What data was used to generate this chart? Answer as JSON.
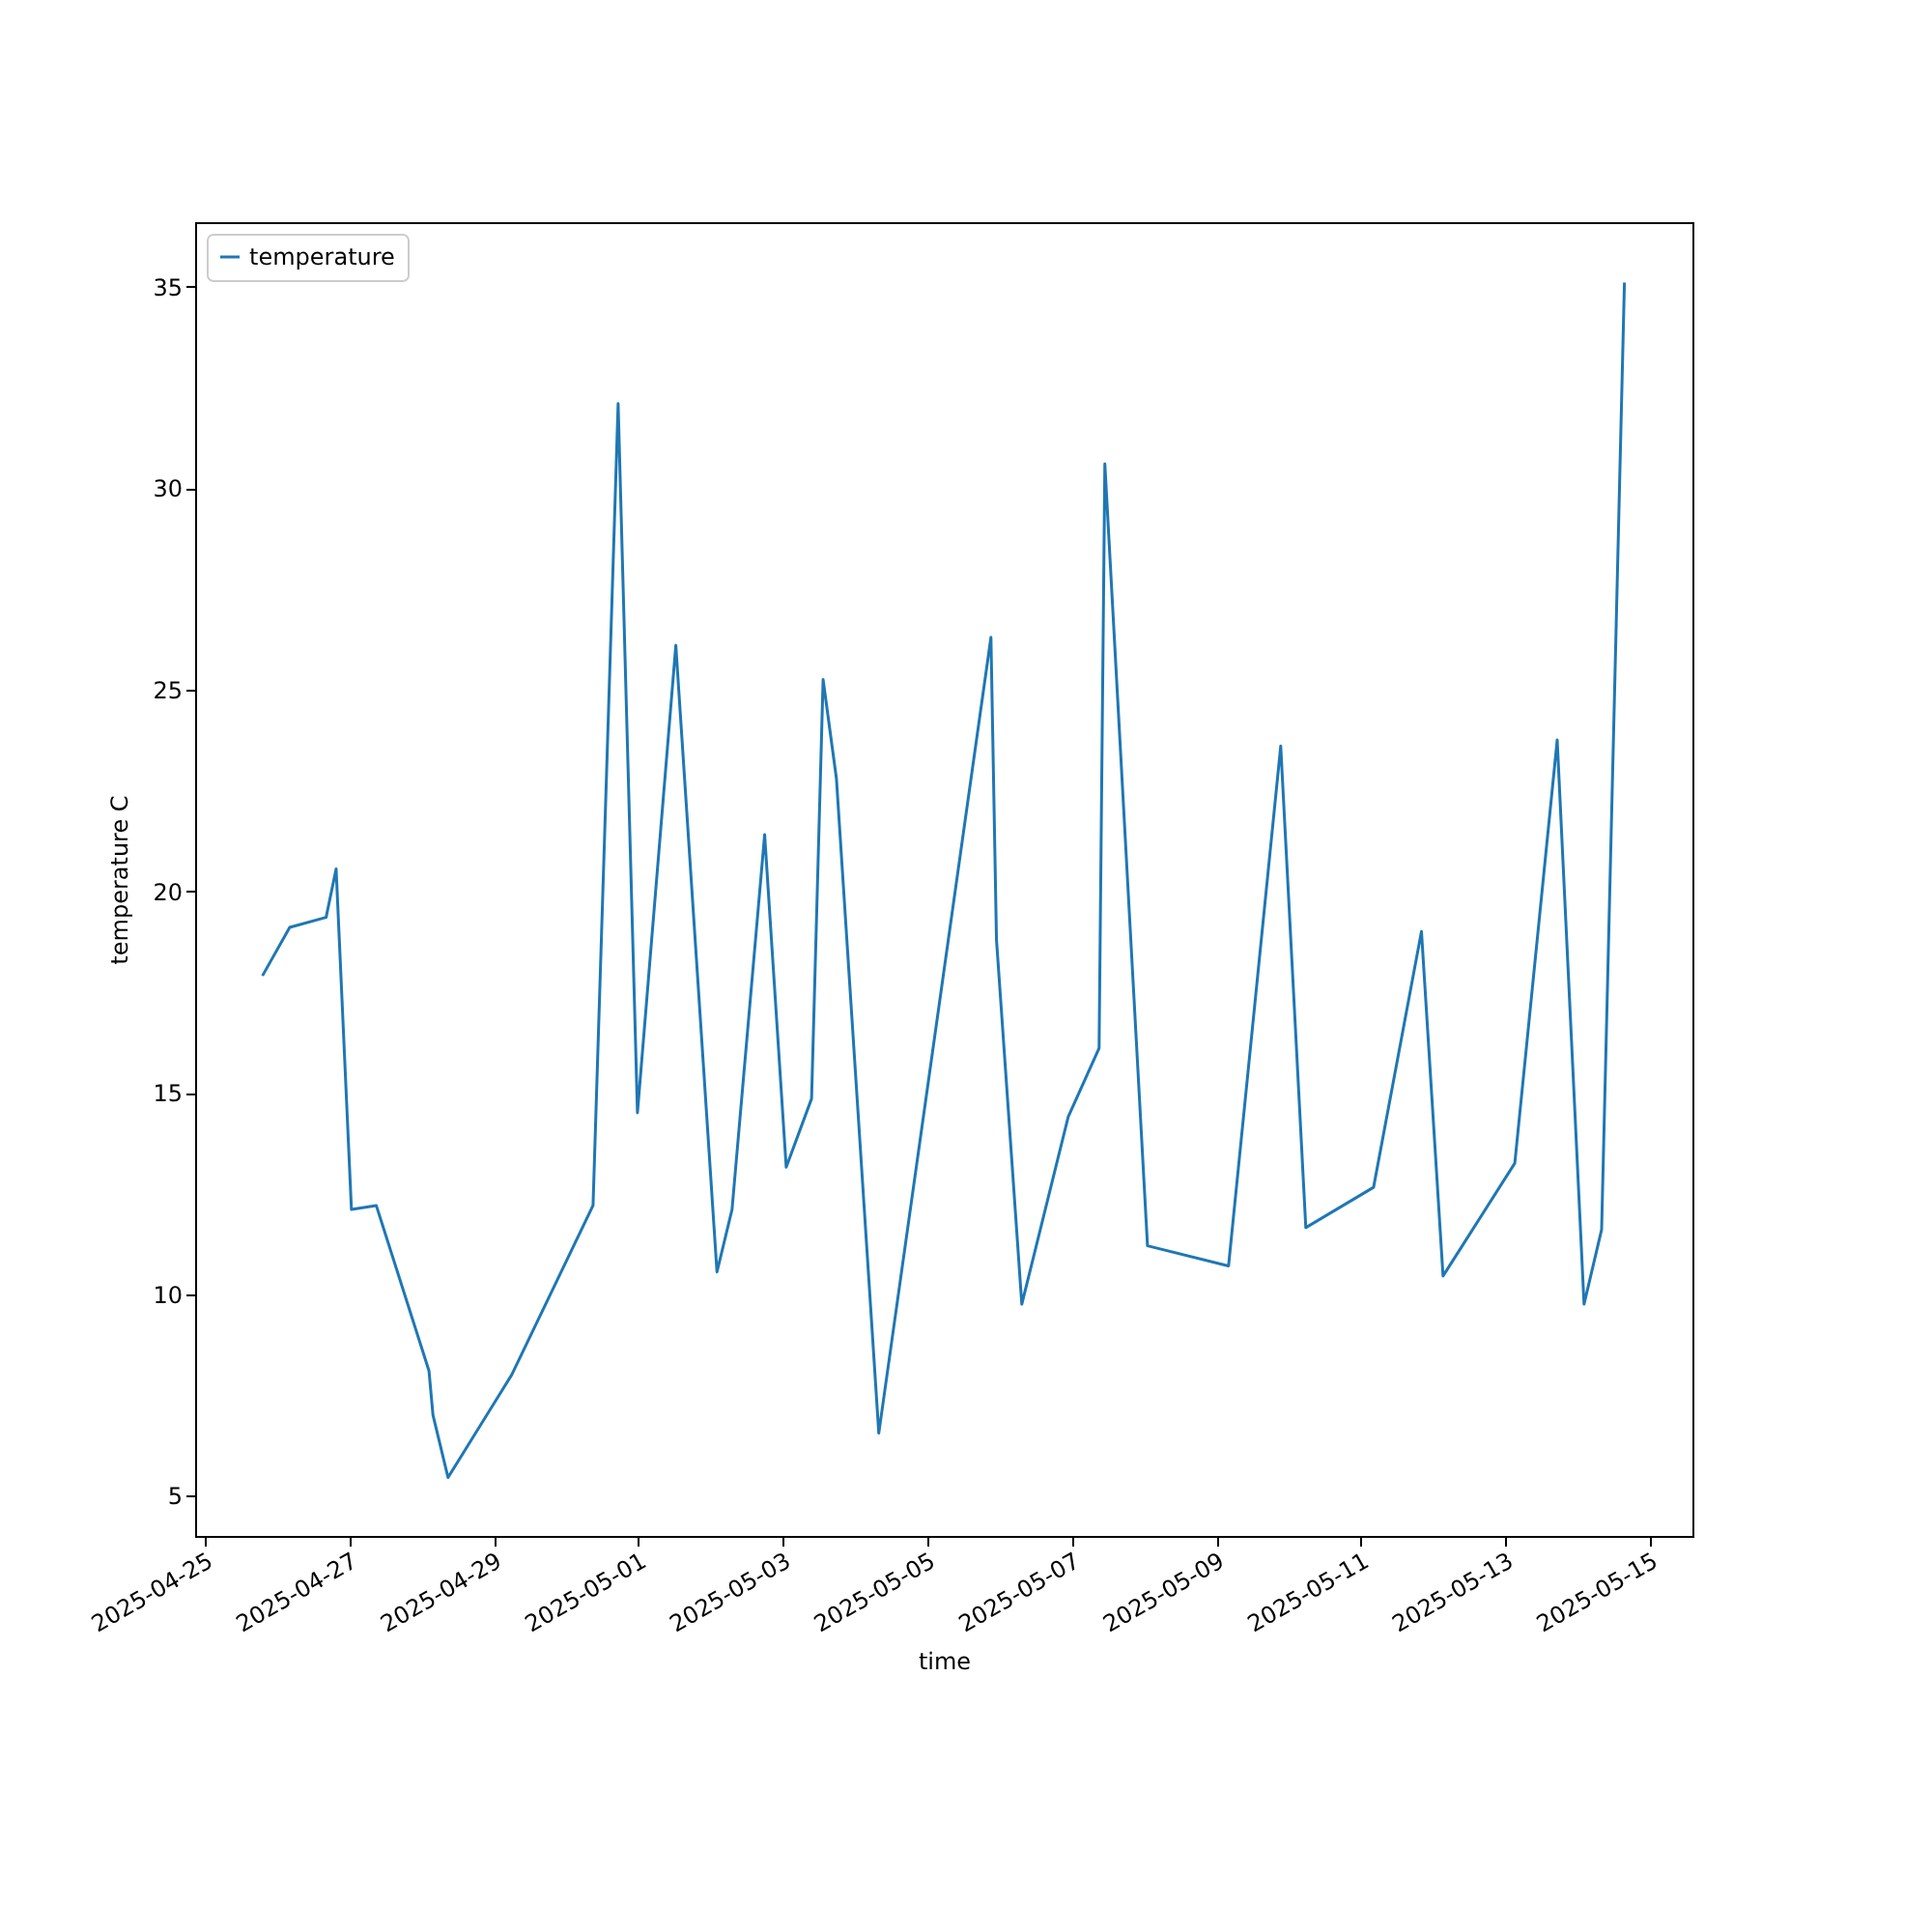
{
  "chart_data": {
    "type": "line",
    "xlabel": "time",
    "ylabel": "temperature C",
    "x": [
      "2025-04-25T19:12",
      "2025-04-26T04:15",
      "2025-04-26T16:20",
      "2025-04-26T19:40",
      "2025-04-27T00:45",
      "2025-04-27T09:00",
      "2025-04-28T02:30",
      "2025-04-28T03:50",
      "2025-04-28T08:50",
      "2025-04-29T06:00",
      "2025-04-30T09:00",
      "2025-04-30T17:20",
      "2025-04-30T23:45",
      "2025-05-01T12:30",
      "2025-05-02T02:10",
      "2025-05-02T07:10",
      "2025-05-02T18:00",
      "2025-05-03T01:10",
      "2025-05-03T09:35",
      "2025-05-03T13:25",
      "2025-05-03T17:50",
      "2025-05-04T07:55",
      "2025-05-05T21:10",
      "2025-05-05T23:00",
      "2025-05-06T07:25",
      "2025-05-06T22:50",
      "2025-05-07T09:05",
      "2025-05-07T11:00",
      "2025-05-08T01:10",
      "2025-05-09T04:05",
      "2025-05-09T21:25",
      "2025-05-10T05:45",
      "2025-05-11T04:15",
      "2025-05-11T20:10",
      "2025-05-12T03:20",
      "2025-05-13T03:10",
      "2025-05-13T17:15",
      "2025-05-14T02:10",
      "2025-05-14T08:00",
      "2025-05-14T15:35"
    ],
    "series": [
      {
        "name": "temperature",
        "color": "#1f77b4",
        "values": [
          17.9,
          19.1,
          19.35,
          20.55,
          12.1,
          12.2,
          8.1,
          7.0,
          5.45,
          8.0,
          12.2,
          32.1,
          14.5,
          26.1,
          10.55,
          12.1,
          21.4,
          13.15,
          14.85,
          25.25,
          22.8,
          6.55,
          26.3,
          18.8,
          9.75,
          14.4,
          16.1,
          30.6,
          11.2,
          10.7,
          23.6,
          11.65,
          12.65,
          19.0,
          10.45,
          13.25,
          23.75,
          9.75,
          11.6,
          35.1
        ]
      }
    ],
    "xlim": [
      "2025-04-24T20:50",
      "2025-05-15T14:10"
    ],
    "xticks": [
      "2025-04-25",
      "2025-04-27",
      "2025-04-29",
      "2025-05-01",
      "2025-05-03",
      "2025-05-05",
      "2025-05-07",
      "2025-05-09",
      "2025-05-11",
      "2025-05-13",
      "2025-05-15"
    ],
    "ylim": [
      4.0,
      36.6
    ],
    "yticks": [
      5,
      10,
      15,
      20,
      25,
      30,
      35
    ],
    "legend": "top left",
    "grid": false,
    "marker": "none",
    "line_style": "solid"
  }
}
